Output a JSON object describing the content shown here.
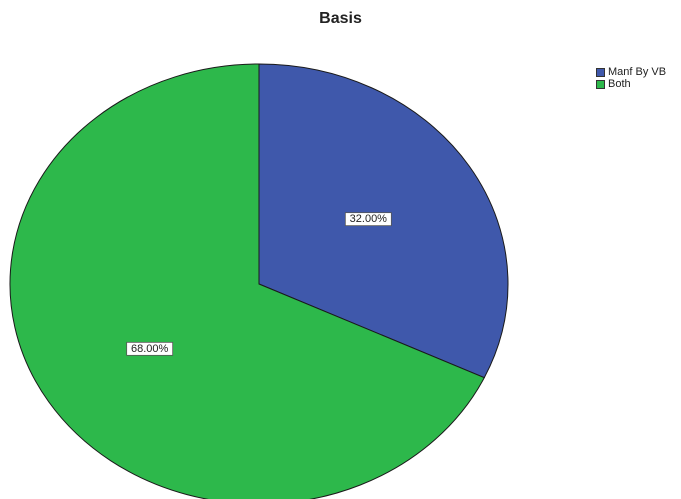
{
  "chart_data": {
    "type": "pie",
    "title": "Basis",
    "slices": [
      {
        "label": "Manf By VB",
        "value": 32.0,
        "value_label": "32.00%",
        "color": "#3f58ab"
      },
      {
        "label": "Both",
        "value": 68.0,
        "value_label": "68.00%",
        "color": "#2db84b"
      }
    ],
    "legend_position": "top-right",
    "start_angle_deg": 0,
    "direction": "clockwise"
  }
}
